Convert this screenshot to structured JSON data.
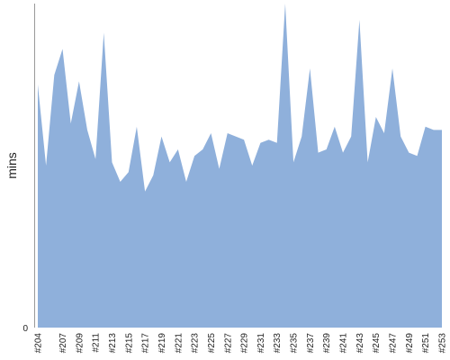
{
  "chart_data": {
    "type": "area",
    "title": "",
    "xlabel": "",
    "ylabel": "mins",
    "y_ticks": [
      "0"
    ],
    "ylim": [
      0,
      100
    ],
    "grid": false,
    "fill_color": "#8fb0db",
    "x_tick_labels": [
      "#204",
      "#207",
      "#209",
      "#211",
      "#213",
      "#215",
      "#217",
      "#219",
      "#221",
      "#223",
      "#225",
      "#227",
      "#229",
      "#231",
      "#233",
      "#235",
      "#237",
      "#239",
      "#241",
      "#243",
      "#245",
      "#247",
      "#249",
      "#251",
      "#253"
    ],
    "x": [
      "#204",
      "#205",
      "#206",
      "#207",
      "#208",
      "#209",
      "#210",
      "#211",
      "#212",
      "#213",
      "#214",
      "#215",
      "#216",
      "#217",
      "#218",
      "#219",
      "#220",
      "#221",
      "#222",
      "#223",
      "#224",
      "#225",
      "#226",
      "#227",
      "#228",
      "#229",
      "#230",
      "#231",
      "#232",
      "#233",
      "#234",
      "#235",
      "#236",
      "#237",
      "#238",
      "#239",
      "#240",
      "#241",
      "#242",
      "#243",
      "#244",
      "#245",
      "#246",
      "#247",
      "#248",
      "#249",
      "#250",
      "#251",
      "#252",
      "#253"
    ],
    "values": [
      75,
      50,
      78,
      86,
      63,
      76,
      61,
      52,
      91,
      51,
      45,
      48,
      62,
      42,
      47,
      59,
      51,
      55,
      45,
      53,
      55,
      60,
      49,
      60,
      59,
      58,
      50,
      57,
      58,
      57,
      100,
      51,
      59,
      80,
      54,
      55,
      62,
      54,
      59,
      95,
      51,
      65,
      60,
      80,
      59,
      54,
      53,
      62,
      61,
      61
    ]
  }
}
